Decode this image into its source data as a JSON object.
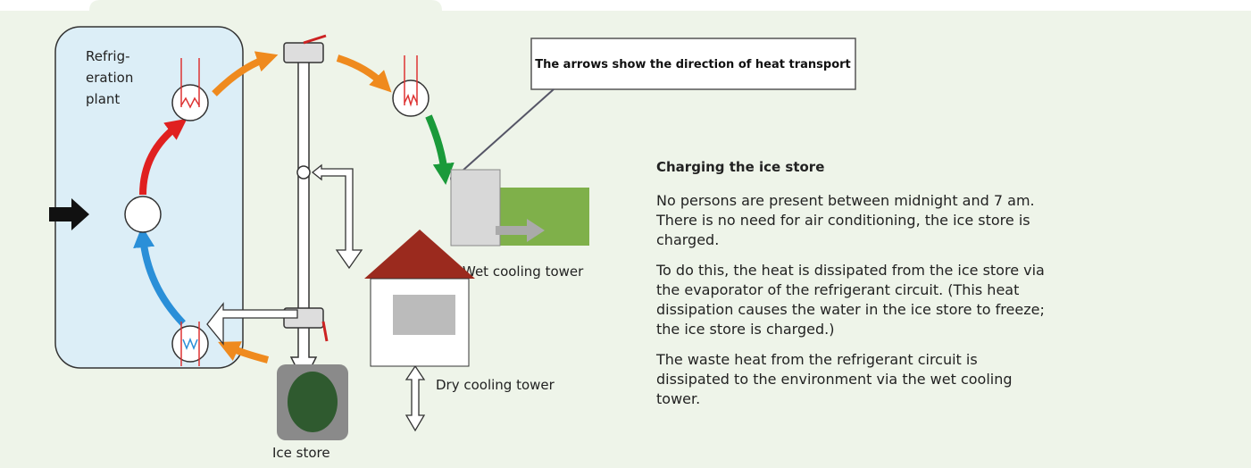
{
  "diagram": {
    "plant_label_lines": [
      "Refrig-",
      "eration",
      "plant"
    ],
    "callout": "The arrows show the direction of heat transport",
    "labels": {
      "wet_tower": "Wet cooling tower",
      "dry_tower": "Dry cooling tower",
      "ice_store": "Ice store"
    }
  },
  "text": {
    "heading": "Charging the ice store",
    "paragraphs": [
      "No persons are present between midnight and 7 am. There is no need for air conditioning, the ice store is charged.",
      "To do this, the heat is dissipated from the ice store via the evaporator of the refrigerant circuit. (This heat dissipation causes the water in the ice store to freeze; the ice store is charged.)",
      "The waste heat from the refrigerant circuit is dissipated to the environment via the wet cooling tower."
    ]
  }
}
